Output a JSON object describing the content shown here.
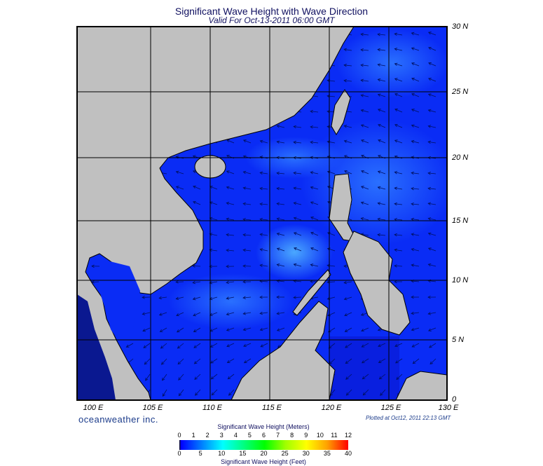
{
  "header": {
    "title": "Significant Wave Height with Wave Direction",
    "subtitle": "Valid For Oct-13-2011 06:00 GMT"
  },
  "map": {
    "region": "South China Sea",
    "lon_labels": [
      "100 E",
      "105 E",
      "110 E",
      "115 E",
      "120 E",
      "125 E",
      "130 E"
    ],
    "lat_labels": [
      "30 N",
      "25 N",
      "20 N",
      "15 N",
      "10 N",
      "5 N",
      "0"
    ],
    "colors": {
      "land": "#c0c0c0",
      "ocean": "#0a2cf5",
      "ocean_light": "#2f7bff",
      "coast": "#000000"
    }
  },
  "footer": {
    "brand": "oceanweather inc.",
    "plotted": "Plotted at Oct12, 2011 22:13 GMT"
  },
  "colorbar": {
    "title_top": "Significant Wave Height (Meters)",
    "title_bottom": "Significant Wave Height (Feet)",
    "meters": [
      "0",
      "1",
      "2",
      "3",
      "4",
      "5",
      "6",
      "7",
      "8",
      "9",
      "10",
      "11",
      "12"
    ],
    "feet": [
      "0",
      "5",
      "10",
      "15",
      "20",
      "25",
      "30",
      "35",
      "40"
    ],
    "colors": [
      "#000000",
      "#0000ff",
      "#0080ff",
      "#00ffff",
      "#00ff80",
      "#00ff00",
      "#a0ff00",
      "#ffff00",
      "#ffa000",
      "#ff0000"
    ]
  }
}
